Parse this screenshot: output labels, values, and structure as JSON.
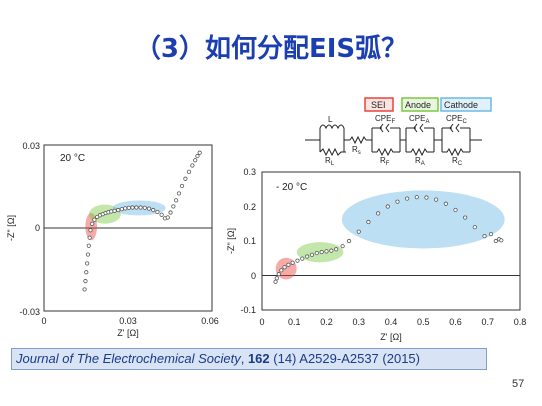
{
  "title": "（3）如何分配EIS弧？",
  "circuit": {
    "labels": {
      "sei": "SEI",
      "anode": "Anode",
      "cathode": "Cathode"
    },
    "elements": {
      "L": "L",
      "R_L": "R",
      "R_L_sub": "L",
      "R_s": "R",
      "R_s_sub": "s",
      "cpe_f": "CPE",
      "cpe_f_sub": "F",
      "r_f": "R",
      "r_f_sub": "F",
      "cpe_a": "CPE",
      "cpe_a_sub": "A",
      "r_a": "R",
      "r_a_sub": "A",
      "cpe_c": "CPE",
      "cpe_c_sub": "C",
      "r_c": "R",
      "r_c_sub": "C"
    },
    "colors": {
      "sei": "#e8453c",
      "anode": "#7ac943",
      "cathode": "#6cb8e6"
    }
  },
  "journal": {
    "name": "Journal of The Electrochemical Society",
    "sep": ", ",
    "volume": "162",
    "rest": " (14) A2529-A2537 (2015)"
  },
  "page_number": "57",
  "chart_data": [
    {
      "type": "scatter",
      "title": "20 °C",
      "xlabel": "Z' [Ω]",
      "ylabel": "-Z\" [Ω]",
      "xlim": [
        0,
        0.06
      ],
      "ylim": [
        -0.03,
        0.03
      ],
      "xticks": [
        "0",
        "0.03",
        "0.06"
      ],
      "yticks": [
        "0.03",
        "0",
        "-0.03"
      ],
      "x": [
        0.0145,
        0.0148,
        0.0151,
        0.0154,
        0.0157,
        0.016,
        0.0163,
        0.0166,
        0.0172,
        0.018,
        0.019,
        0.02,
        0.021,
        0.022,
        0.023,
        0.024,
        0.0252,
        0.0265,
        0.0278,
        0.029,
        0.0303,
        0.0316,
        0.033,
        0.0345,
        0.036,
        0.0375,
        0.039,
        0.0405,
        0.042,
        0.0432,
        0.0442,
        0.0452,
        0.0462,
        0.0472,
        0.0482,
        0.0493,
        0.0505,
        0.0518,
        0.053,
        0.054,
        0.0548,
        0.0556
      ],
      "y": [
        -0.0222,
        -0.0192,
        -0.016,
        -0.0128,
        -0.0096,
        -0.0064,
        -0.0035,
        -0.0008,
        0.0015,
        0.003,
        0.004,
        0.0046,
        0.005,
        0.0054,
        0.0057,
        0.006,
        0.0062,
        0.0065,
        0.0068,
        0.0071,
        0.0073,
        0.0074,
        0.0074,
        0.0074,
        0.0073,
        0.007,
        0.0065,
        0.0058,
        0.0048,
        0.0035,
        0.0038,
        0.0056,
        0.0078,
        0.01,
        0.0125,
        0.0152,
        0.0178,
        0.0203,
        0.0226,
        0.0245,
        0.026,
        0.0272
      ],
      "highlights": [
        {
          "name": "SEI",
          "color": "#e8453c",
          "x": [
            0.0162,
            0.0175
          ],
          "y": [
            -0.003,
            0.004
          ]
        },
        {
          "name": "Anode",
          "color": "#7ac943",
          "x": [
            0.0175,
            0.026
          ],
          "y": [
            0.003,
            0.007
          ]
        },
        {
          "name": "Cathode",
          "color": "#6cb8e6",
          "x": [
            0.026,
            0.042
          ],
          "y": [
            0.006,
            0.0085
          ]
        }
      ]
    },
    {
      "type": "scatter",
      "title": "- 20 °C",
      "xlabel": "Z' [Ω]",
      "ylabel": "-Z\" [Ω]",
      "xlim": [
        0,
        0.8
      ],
      "ylim": [
        -0.1,
        0.3
      ],
      "xticks": [
        "0",
        "0.1",
        "0.2",
        "0.3",
        "0.4",
        "0.5",
        "0.6",
        "0.7",
        "0.8"
      ],
      "yticks": [
        "0.3",
        "0.2",
        "0.1",
        "0",
        "-0.1"
      ],
      "x": [
        0.042,
        0.046,
        0.052,
        0.06,
        0.07,
        0.082,
        0.095,
        0.11,
        0.125,
        0.14,
        0.155,
        0.17,
        0.185,
        0.2,
        0.215,
        0.23,
        0.25,
        0.27,
        0.3,
        0.33,
        0.36,
        0.39,
        0.42,
        0.45,
        0.48,
        0.51,
        0.54,
        0.57,
        0.6,
        0.63,
        0.66,
        0.69,
        0.71,
        0.725,
        0.735,
        0.742
      ],
      "y": [
        -0.018,
        -0.008,
        0.004,
        0.015,
        0.024,
        0.031,
        0.037,
        0.043,
        0.049,
        0.055,
        0.06,
        0.065,
        0.068,
        0.07,
        0.072,
        0.076,
        0.085,
        0.1,
        0.127,
        0.155,
        0.18,
        0.2,
        0.214,
        0.223,
        0.227,
        0.226,
        0.22,
        0.208,
        0.19,
        0.168,
        0.14,
        0.114,
        0.12,
        0.1,
        0.105,
        0.102
      ],
      "highlights": [
        {
          "name": "SEI",
          "color": "#e8453c",
          "x": [
            0.055,
            0.095
          ],
          "y": [
            0.0,
            0.04
          ]
        },
        {
          "name": "Anode",
          "color": "#7ac943",
          "x": [
            0.12,
            0.24
          ],
          "y": [
            0.05,
            0.085
          ]
        },
        {
          "name": "Cathode",
          "color": "#6cb8e6",
          "x": [
            0.26,
            0.74
          ],
          "y": [
            0.09,
            0.235
          ]
        }
      ]
    }
  ]
}
